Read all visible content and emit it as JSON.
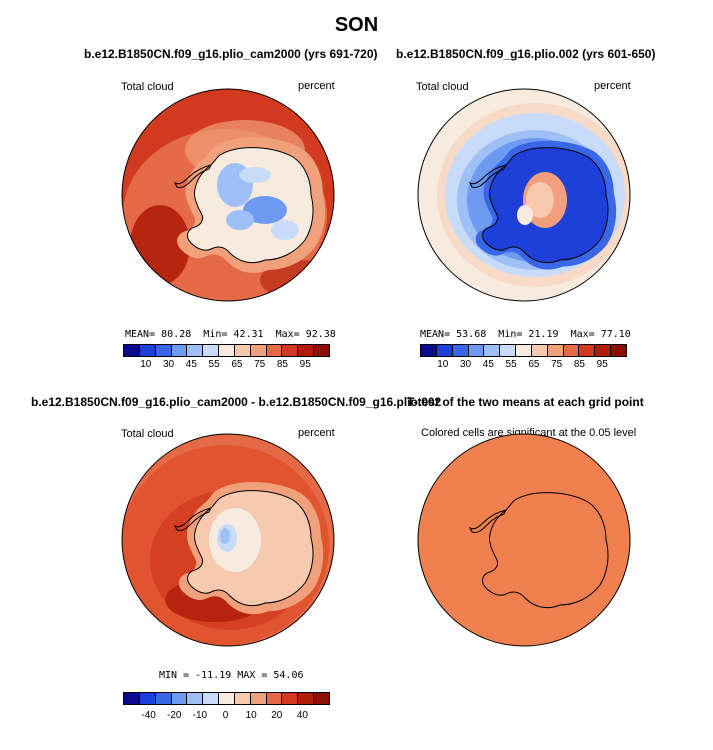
{
  "page": {
    "title": "SON"
  },
  "colors": {
    "palette": [
      "#0a0a8c",
      "#1f3fd9",
      "#3a66e8",
      "#6e9af2",
      "#9ec0f7",
      "#c8dcf9",
      "#f7ebe0",
      "#f7c9ae",
      "#f0a07a",
      "#e56a47",
      "#d23a1f",
      "#b01e0a",
      "#8a0f05"
    ],
    "coast": "#000000",
    "outline": "#000000"
  },
  "panels": {
    "top_left": {
      "title": "b.e12.B1850CN.f09_g16.plio_cam2000 (yrs 691-720)",
      "left_label": "Total cloud",
      "right_label": "percent",
      "stats": {
        "mean_label": "MEAN=",
        "mean": "80.28",
        "min_label": "Min=",
        "min": "42.31",
        "max_label": "Max=",
        "max": "92.38"
      }
    },
    "top_right": {
      "title": "b.e12.B1850CN.f09_g16.plio.002 (yrs 601-650)",
      "left_label": "Total cloud",
      "right_label": "percent",
      "stats": {
        "mean_label": "MEAN=",
        "mean": "53.68",
        "min_label": "Min=",
        "min": "21.19",
        "max_label": "Max=",
        "max": "77.10"
      }
    },
    "bottom_left": {
      "title": "b.e12.B1850CN.f09_g16.plio_cam2000 - b.e12.B1850CN.f09_g16.plio.002",
      "left_label": "Total cloud",
      "right_label": "percent",
      "stats_line": "MIN = -11.19  MAX =  54.06"
    },
    "bottom_right": {
      "title": "T-test of the two means at each grid point",
      "subtitle": "Colored cells are significant at the 0.05 level"
    }
  },
  "chart_data": [
    {
      "type": "heatmap",
      "title": "b.e12.B1850CN.f09_g16.plio_cam2000 (yrs 691-720)",
      "variable": "Total cloud",
      "units": "percent",
      "projection": "south polar stereographic",
      "statistics": {
        "mean": 80.28,
        "min": 42.31,
        "max": 92.38
      },
      "colorbar_ticks": [
        "10",
        "30",
        "45",
        "55",
        "65",
        "75",
        "85",
        "95"
      ]
    },
    {
      "type": "heatmap",
      "title": "b.e12.B1850CN.f09_g16.plio.002 (yrs 601-650)",
      "variable": "Total cloud",
      "units": "percent",
      "projection": "south polar stereographic",
      "statistics": {
        "mean": 53.68,
        "min": 21.19,
        "max": 77.1
      },
      "colorbar_ticks": [
        "10",
        "30",
        "45",
        "55",
        "65",
        "75",
        "85",
        "95"
      ]
    },
    {
      "type": "heatmap",
      "title": "b.e12.B1850CN.f09_g16.plio_cam2000 - b.e12.B1850CN.f09_g16.plio.002",
      "variable": "Total cloud",
      "units": "percent",
      "projection": "south polar stereographic",
      "statistics": {
        "min": -11.19,
        "max": 54.06
      },
      "colorbar_ticks": [
        "-40",
        "-20",
        "-10",
        "0",
        "10",
        "20",
        "40"
      ]
    },
    {
      "type": "heatmap",
      "title": "T-test of the two means at each grid point",
      "subtitle": "Colored cells are significant at the 0.05 level",
      "projection": "south polar stereographic"
    }
  ]
}
